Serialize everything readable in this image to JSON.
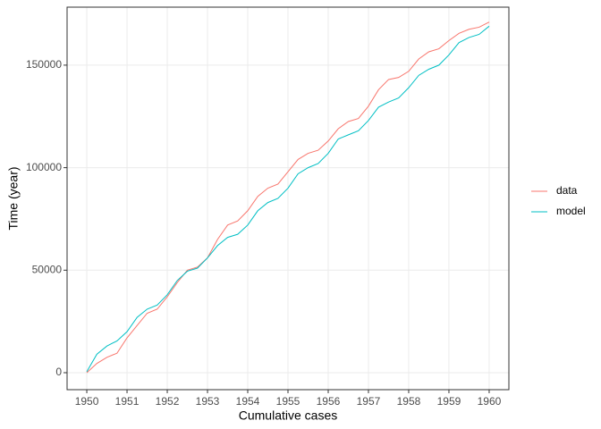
{
  "chart_data": {
    "type": "line",
    "x_label": "Cumulative cases",
    "y_label": "Time (year)",
    "x": [
      1950,
      1950.25,
      1950.5,
      1950.75,
      1951,
      1951.25,
      1951.5,
      1951.75,
      1952,
      1952.25,
      1952.5,
      1952.75,
      1953,
      1953.25,
      1953.5,
      1953.75,
      1954,
      1954.25,
      1954.5,
      1954.75,
      1955,
      1955.25,
      1955.5,
      1955.75,
      1956,
      1956.25,
      1956.5,
      1956.75,
      1957,
      1957.25,
      1957.5,
      1957.75,
      1958,
      1958.25,
      1958.5,
      1958.75,
      1959,
      1959.25,
      1959.5,
      1959.75,
      1960
    ],
    "series": [
      {
        "name": "data",
        "color": "#F8766D",
        "values": [
          0,
          4500,
          7500,
          9500,
          17000,
          23000,
          29000,
          31000,
          37000,
          44000,
          50000,
          51500,
          56000,
          65000,
          72000,
          74000,
          79000,
          86000,
          90000,
          92000,
          98000,
          104000,
          107000,
          108500,
          113000,
          119000,
          122500,
          124000,
          130000,
          138000,
          143000,
          144000,
          147000,
          153000,
          156500,
          158000,
          162000,
          165500,
          167500,
          168500,
          171000
        ]
      },
      {
        "name": "model",
        "color": "#00BFC4",
        "values": [
          500,
          9000,
          13000,
          15500,
          20000,
          27000,
          31000,
          33000,
          38000,
          45000,
          49500,
          51000,
          56000,
          62000,
          66000,
          67500,
          72000,
          79000,
          83000,
          85000,
          90000,
          97000,
          100000,
          102000,
          107000,
          114000,
          116000,
          118000,
          123000,
          129500,
          132000,
          134000,
          139000,
          145000,
          148000,
          150000,
          155000,
          161000,
          163500,
          165000,
          169000
        ]
      }
    ],
    "xlim": [
      1949.51,
      1960.49
    ],
    "xticks": [
      1950,
      1951,
      1952,
      1953,
      1954,
      1955,
      1956,
      1957,
      1958,
      1959,
      1960
    ],
    "ylim": [
      -8280,
      178290
    ],
    "yticks": [
      0,
      50000,
      100000,
      150000
    ],
    "grid": true,
    "legend_position": "right"
  }
}
